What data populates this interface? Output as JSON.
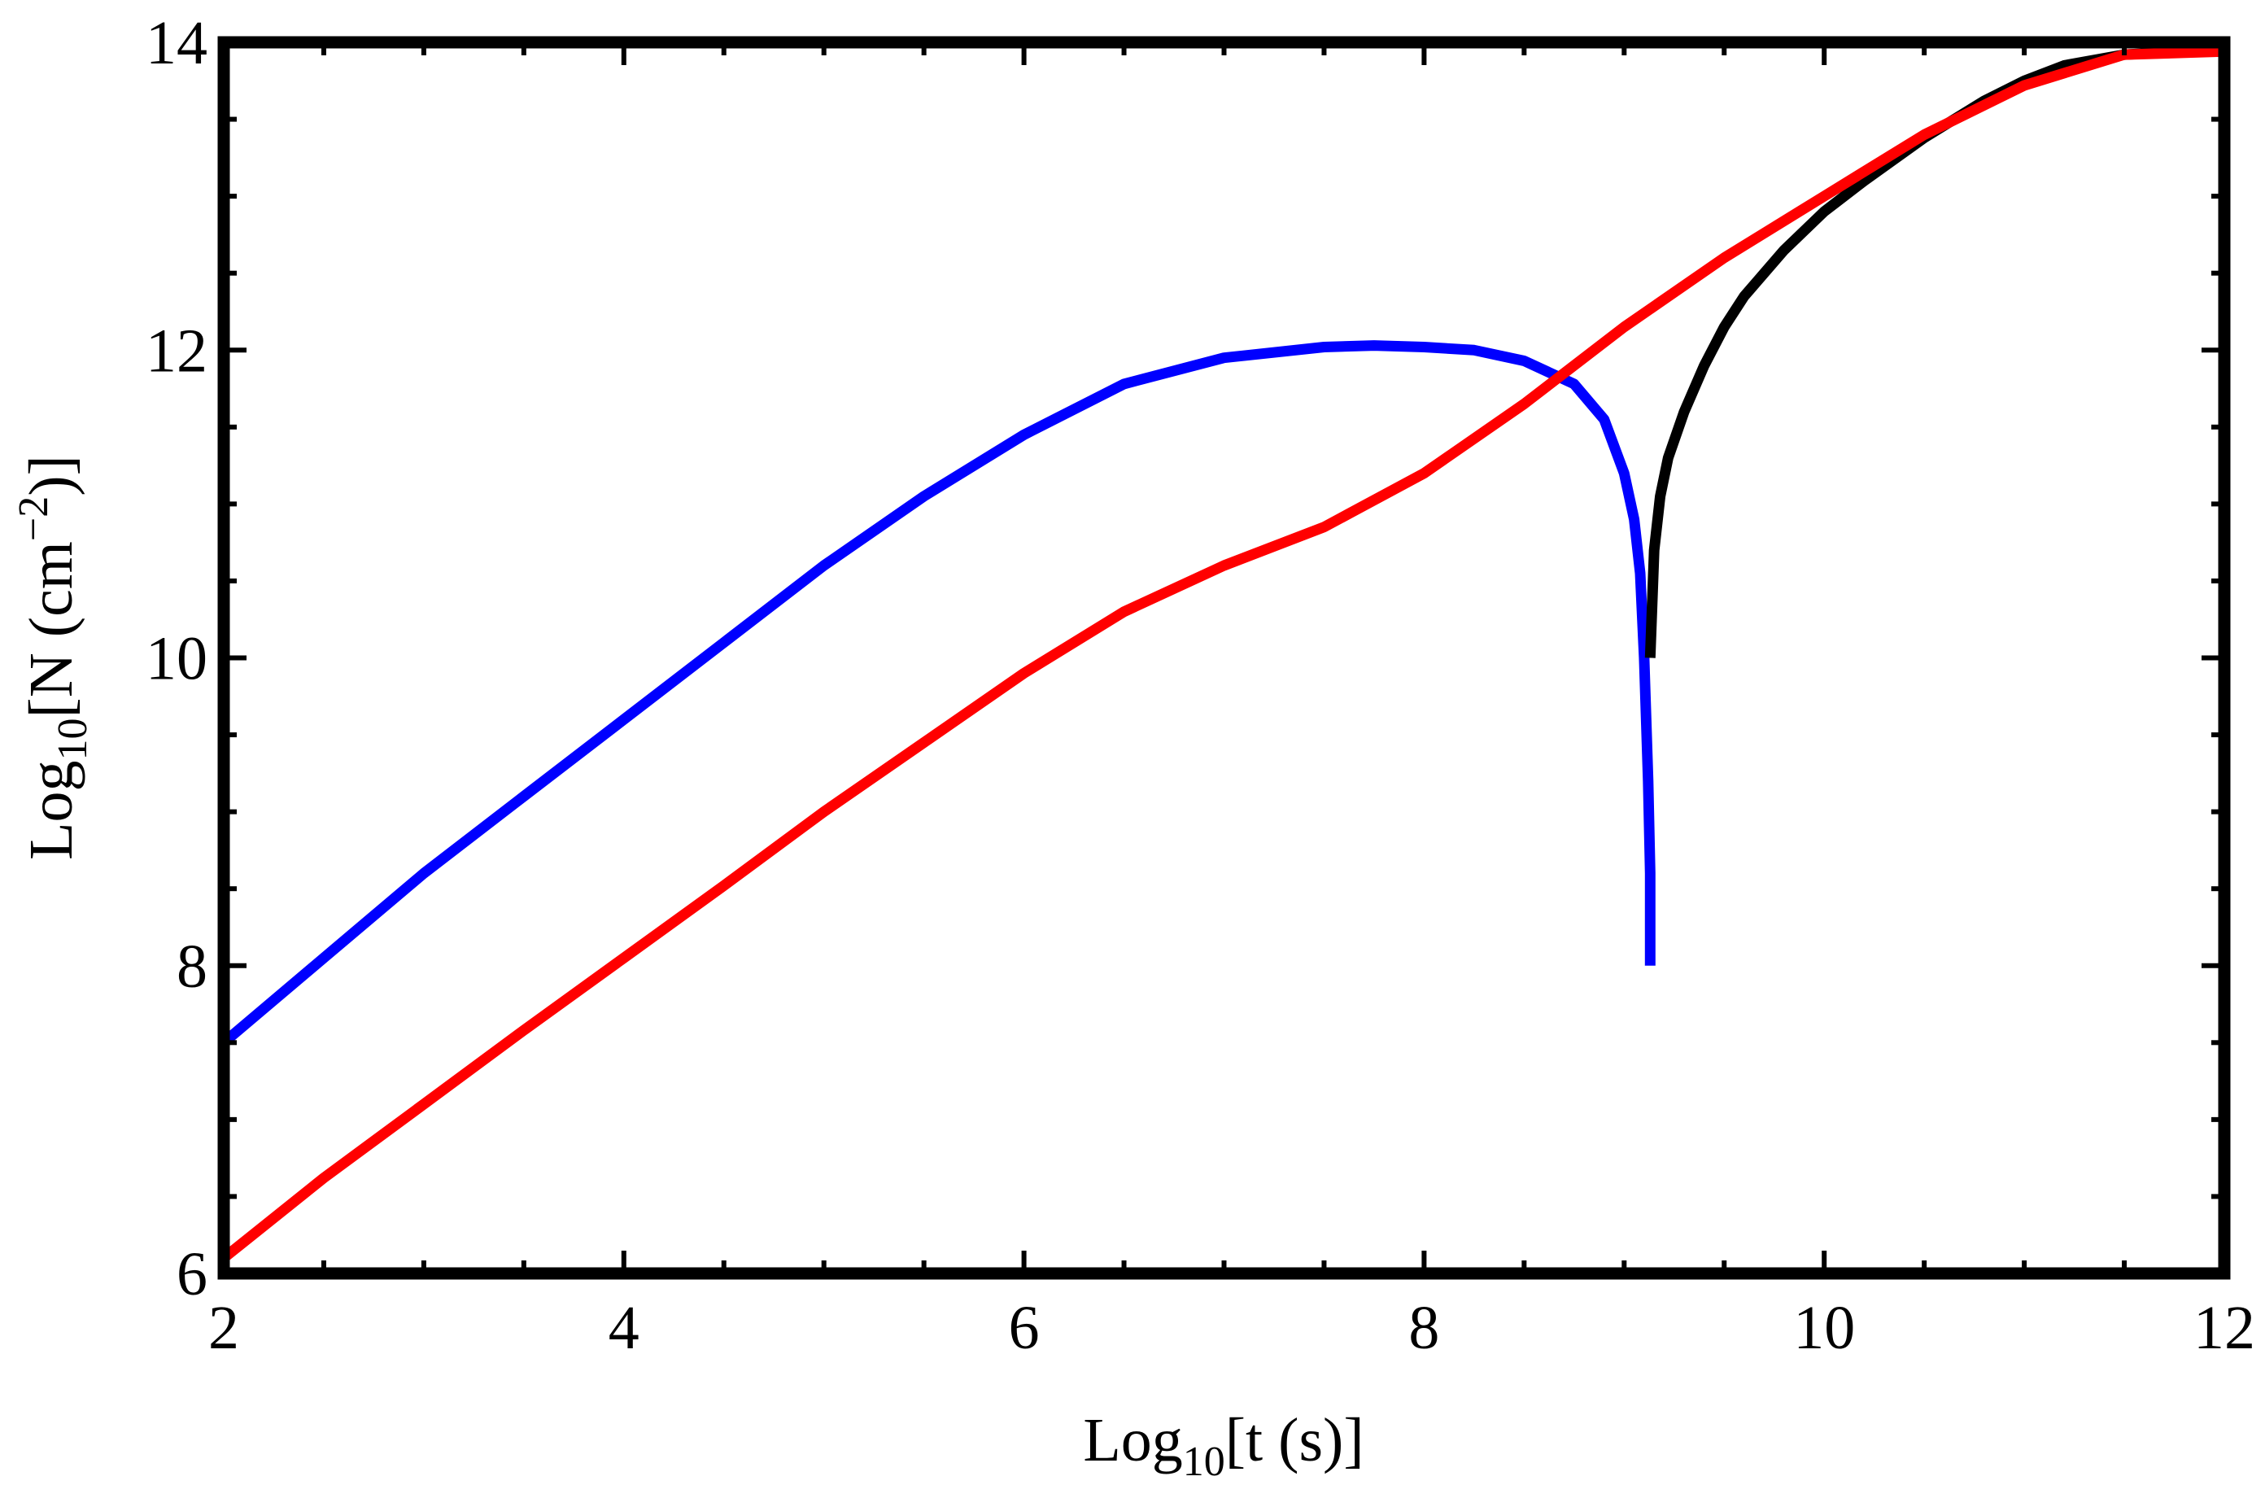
{
  "chart_data": {
    "type": "line",
    "title": "",
    "xlabel": {
      "base": "Log",
      "sub": "10",
      "rest": "[t (s)]"
    },
    "ylabel": {
      "base": "Log",
      "sub": "10",
      "rest1": "[N (cm",
      "sup": "−2",
      "rest2": ")]"
    },
    "xlim": [
      2,
      12
    ],
    "ylim": [
      6,
      14
    ],
    "x_ticks": [
      "2",
      "4",
      "6",
      "8",
      "10",
      "12"
    ],
    "y_ticks": [
      "6",
      "8",
      "10",
      "12",
      "14"
    ],
    "grid": false,
    "legend": "none",
    "series": [
      {
        "color": "#0000ff",
        "x": [
          2,
          2.5,
          3,
          3.5,
          4,
          4.5,
          5,
          5.5,
          6,
          6.5,
          7,
          7.5,
          7.75,
          8,
          8.25,
          8.5,
          8.75,
          8.9,
          9.0,
          9.05,
          9.08,
          9.1,
          9.12,
          9.13,
          9.13
        ],
        "y": [
          7.5,
          8.05,
          8.6,
          9.1,
          9.6,
          10.1,
          10.6,
          11.05,
          11.45,
          11.78,
          11.95,
          12.02,
          12.03,
          12.02,
          12.0,
          11.93,
          11.78,
          11.55,
          11.2,
          10.9,
          10.55,
          10.0,
          9.2,
          8.6,
          8.0
        ]
      },
      {
        "color": "#000000",
        "x": [
          9.13,
          9.15,
          9.18,
          9.22,
          9.3,
          9.4,
          9.5,
          9.6,
          9.8,
          10,
          10.2,
          10.5,
          10.8,
          11,
          11.2,
          11.5,
          11.8,
          12
        ],
        "y": [
          10.0,
          10.7,
          11.05,
          11.3,
          11.6,
          11.9,
          12.15,
          12.35,
          12.65,
          12.9,
          13.1,
          13.38,
          13.62,
          13.75,
          13.85,
          13.92,
          13.94,
          13.94
        ]
      },
      {
        "color": "#ff0000",
        "x": [
          2,
          2.5,
          3,
          3.5,
          4,
          4.5,
          5,
          5.5,
          6,
          6.5,
          7,
          7.5,
          8,
          8.5,
          9,
          9.5,
          10,
          10.5,
          11,
          11.5,
          12
        ],
        "y": [
          6.1,
          6.62,
          7.1,
          7.58,
          8.05,
          8.52,
          9.0,
          9.45,
          9.9,
          10.3,
          10.6,
          10.85,
          11.2,
          11.65,
          12.15,
          12.6,
          13.0,
          13.4,
          13.72,
          13.92,
          13.94
        ]
      }
    ]
  }
}
